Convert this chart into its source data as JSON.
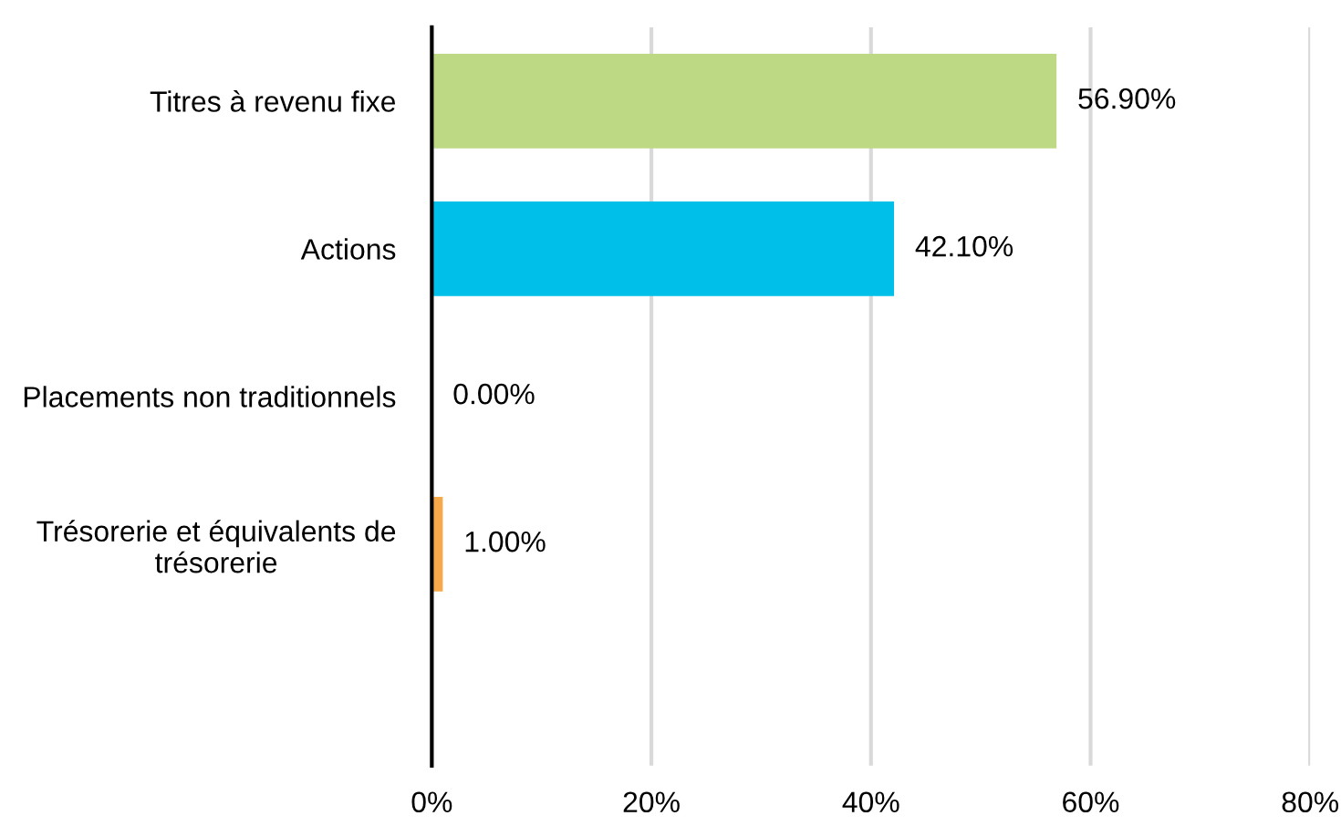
{
  "chart_data": {
    "type": "bar",
    "orientation": "horizontal",
    "categories": [
      "Titres à revenu fixe",
      "Actions",
      "Placements non traditionnels",
      "Trésorerie et équivalents de trésorerie",
      null
    ],
    "values": [
      56.9,
      42.1,
      0.0,
      1.0,
      null
    ],
    "colors": [
      "#bdd984",
      "#00bfe8",
      "#00bfe8",
      "#f5a94a",
      "#000000"
    ],
    "value_labels": [
      "56.90%",
      "42.10%",
      "0.00%",
      "1.00%",
      null
    ],
    "xlim": [
      0,
      80
    ],
    "xticks": [
      {
        "value": 0,
        "label": "0%"
      },
      {
        "value": 20,
        "label": "20%"
      },
      {
        "value": 40,
        "label": "40%"
      },
      {
        "value": 60,
        "label": "60%"
      },
      {
        "value": 80,
        "label": "80%"
      }
    ],
    "grid": "x"
  }
}
